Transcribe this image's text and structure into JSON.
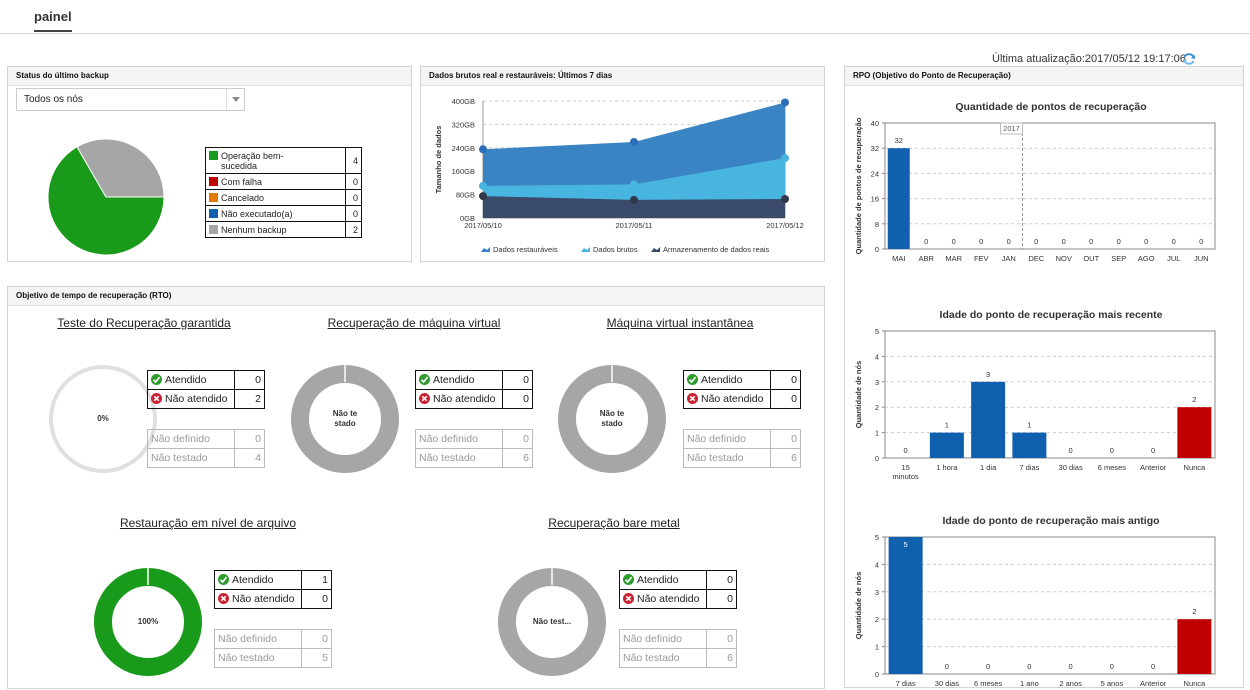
{
  "nav": {
    "tab": "painel"
  },
  "last_update": "Última atualização:2017/05/12 19:17:06",
  "backup_status": {
    "title": "Status do último backup",
    "filter": "Todos os nós",
    "legend": [
      {
        "label": "Operação bem-sucedida",
        "value": "4",
        "color": "#1a9a1a"
      },
      {
        "label": "Com falha",
        "value": "0",
        "color": "#c00000"
      },
      {
        "label": "Cancelado",
        "value": "0",
        "color": "#e07b00"
      },
      {
        "label": "Não executado(a)",
        "value": "0",
        "color": "#1060b0"
      },
      {
        "label": "Nenhum backup",
        "value": "2",
        "color": "#a6a6a6"
      }
    ]
  },
  "raw_data": {
    "title": "Dados brutos real e restauráveis: Últimos 7 dias",
    "ylabel": "Tamanho de dados",
    "legend": [
      "Dados restauráveis",
      "Dados brutos",
      "Armazenamento de dados reais"
    ],
    "colors": [
      "#3a84c4",
      "#48b4e0",
      "#3a4a6a"
    ]
  },
  "rto": {
    "title": "Objetivo de tempo de recuperação (RTO)",
    "met_label": "Atendido",
    "notmet_label": "Não atendido",
    "undef_label": "Não definido",
    "untested_label": "Não testado",
    "cards": [
      {
        "title": "Teste do Recuperação garantida",
        "center": "0%",
        "met": "0",
        "notmet": "2",
        "undef": "0",
        "untested": "4",
        "fill": 0,
        "color": "#e0e0e0"
      },
      {
        "title": "Recuperação de máquina virtual",
        "center": "Não testado",
        "met": "0",
        "notmet": "0",
        "undef": "0",
        "untested": "6",
        "fill": 1,
        "color": "#a6a6a6"
      },
      {
        "title": "Máquina virtual instantânea",
        "center": "Não testado",
        "met": "0",
        "notmet": "0",
        "undef": "0",
        "untested": "6",
        "fill": 1,
        "color": "#a6a6a6"
      },
      {
        "title": "Restauração em nível de arquivo",
        "center": "100%",
        "met": "1",
        "notmet": "0",
        "undef": "0",
        "untested": "5",
        "fill": 1,
        "color": "#1a9a1a"
      },
      {
        "title": "Recuperação bare metal",
        "center": "Não test...",
        "met": "0",
        "notmet": "0",
        "undef": "0",
        "untested": "6",
        "fill": 1,
        "color": "#a6a6a6"
      }
    ]
  },
  "rpo": {
    "title": "RPO (Objetivo do Ponto de Recuperação)",
    "chart1_title": "Quantidade de pontos de recuperação",
    "chart1_ylabel": "Quantidade de pontos de recuperação",
    "chart1_year": "2017",
    "chart2_title": "Idade do ponto de recuperação mais recente",
    "chart3_title": "Idade do ponto de recuperação mais antigo",
    "ylabel_nodes": "Quantidade de nós"
  },
  "chart_data": [
    {
      "type": "pie",
      "title": "Status do último backup",
      "categories": [
        "Operação bem-sucedida",
        "Com falha",
        "Cancelado",
        "Não executado(a)",
        "Nenhum backup"
      ],
      "values": [
        4,
        0,
        0,
        0,
        2
      ],
      "colors": [
        "#1a9a1a",
        "#c00000",
        "#e07b00",
        "#1060b0",
        "#a6a6a6"
      ]
    },
    {
      "type": "area",
      "title": "Dados brutos real e restauráveis: Últimos 7 dias",
      "x": [
        "2017/05/10",
        "2017/05/11",
        "2017/05/12"
      ],
      "ylabel": "Tamanho de dados",
      "yticks": [
        "0GB",
        "80GB",
        "160GB",
        "240GB",
        "320GB",
        "400GB"
      ],
      "ylim": [
        0,
        400
      ],
      "series": [
        {
          "name": "Dados restauráveis",
          "values": [
            235,
            260,
            395
          ]
        },
        {
          "name": "Dados brutos",
          "values": [
            110,
            115,
            205
          ]
        },
        {
          "name": "Armazenamento de dados reais",
          "values": [
            75,
            62,
            65
          ]
        }
      ]
    },
    {
      "type": "bar",
      "title": "Quantidade de pontos de recuperação",
      "ylabel": "Quantidade de pontos de recuperação",
      "categories": [
        "MAI",
        "ABR",
        "MAR",
        "FEV",
        "JAN",
        "DEC",
        "NOV",
        "OUT",
        "SEP",
        "AGO",
        "JUL",
        "JUN"
      ],
      "values": [
        32,
        0,
        0,
        0,
        0,
        0,
        0,
        0,
        0,
        0,
        0,
        0
      ],
      "ylim": [
        0,
        40
      ],
      "yticks": [
        0,
        8,
        16,
        24,
        32,
        40
      ]
    },
    {
      "type": "bar",
      "title": "Idade do ponto de recuperação mais recente",
      "ylabel": "Quantidade de nós",
      "categories": [
        "15 minutos",
        "1 hora",
        "1 dia",
        "7 dias",
        "30 dias",
        "6 meses",
        "Anterior",
        "Nunca"
      ],
      "values": [
        0,
        1,
        3,
        1,
        0,
        0,
        0,
        2
      ],
      "ylim": [
        0,
        5
      ],
      "yticks": [
        0,
        1,
        2,
        3,
        4,
        5
      ]
    },
    {
      "type": "bar",
      "title": "Idade do ponto de recuperação mais antigo",
      "ylabel": "Quantidade de nós",
      "categories": [
        "7 dias",
        "30 dias",
        "6 meses",
        "1 ano",
        "2 anos",
        "5 anos",
        "Anterior",
        "Nunca"
      ],
      "values": [
        5,
        0,
        0,
        0,
        0,
        0,
        0,
        2
      ],
      "ylim": [
        0,
        5
      ],
      "yticks": [
        0,
        1,
        2,
        3,
        4,
        5
      ]
    }
  ]
}
